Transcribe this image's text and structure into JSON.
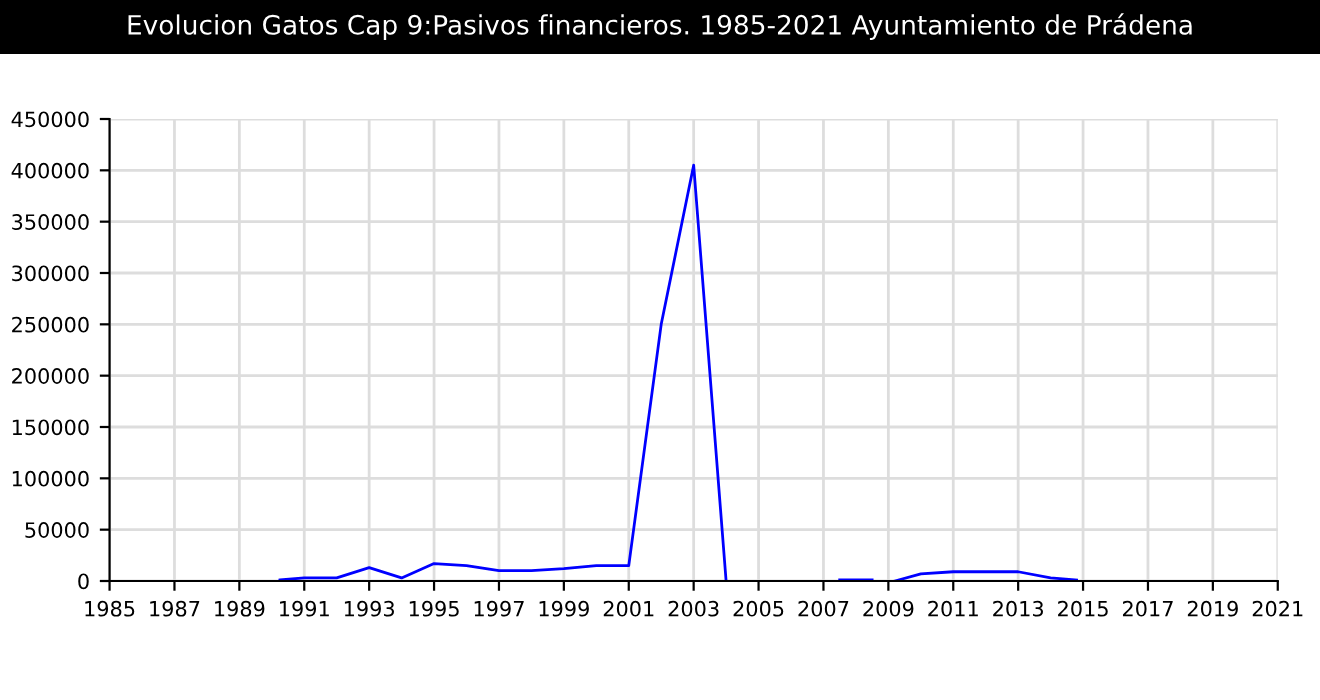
{
  "chart_data": {
    "type": "line",
    "title": "Evolucion Gatos Cap 9:Pasivos financieros. 1985-2021 Ayuntamiento de Prádena",
    "series": [
      {
        "color": "#0000ff",
        "x": [
          1990.25,
          1991,
          1992,
          1993,
          1994,
          1995,
          1996,
          1997,
          1998,
          1999,
          2000,
          2001,
          2002,
          2003,
          2004,
          2006,
          2007.5,
          2008.5,
          2008.8,
          2009.2,
          2010,
          2011,
          2012,
          2013,
          2014,
          2014.8
        ],
        "values": [
          1000,
          3000,
          3000,
          13000,
          3000,
          17000,
          15000,
          10000,
          10000,
          12000,
          15000,
          15000,
          250000,
          405000,
          0,
          null,
          1000,
          1000,
          null,
          0,
          7000,
          9000,
          9000,
          9000,
          3000,
          1000
        ]
      }
    ],
    "xlim": [
      1985,
      2021
    ],
    "xticks": [
      1985,
      1987,
      1989,
      1991,
      1993,
      1995,
      1997,
      1999,
      2001,
      2003,
      2005,
      2007,
      2009,
      2011,
      2013,
      2015,
      2017,
      2019,
      2021
    ],
    "ylim": [
      0,
      450000
    ],
    "yticks": [
      0,
      50000,
      100000,
      150000,
      200000,
      250000,
      300000,
      350000,
      400000,
      450000
    ],
    "grid": true,
    "legend": false,
    "marker": "none",
    "line_style": "solid"
  }
}
